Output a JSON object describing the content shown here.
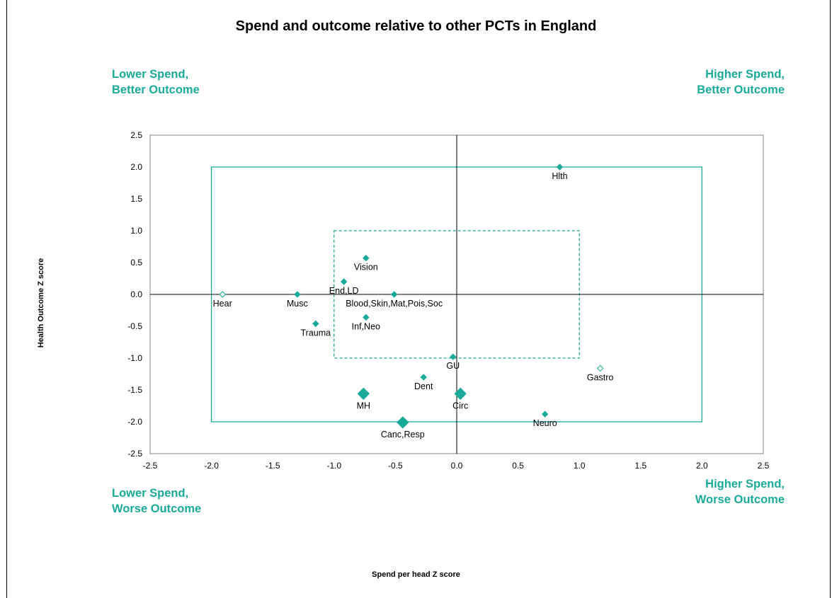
{
  "chart_data": {
    "type": "scatter",
    "title": "Spend and outcome relative to other PCTs in England",
    "xlabel": "Spend per head Z score",
    "ylabel": "Health Outcome Z score",
    "xlim": [
      -2.5,
      2.5
    ],
    "ylim": [
      -2.5,
      2.5
    ],
    "xticks": [
      "-2.5",
      "-2.0",
      "-1.5",
      "-1.0",
      "-0.5",
      "0.0",
      "0.5",
      "1.0",
      "1.5",
      "2.0",
      "2.5"
    ],
    "yticks": [
      "2.5",
      "2.0",
      "1.5",
      "1.0",
      "0.5",
      "0.0",
      "-0.5",
      "-1.0",
      "-1.5",
      "-2.0",
      "-2.5"
    ],
    "grid": false,
    "quadrant_labels": {
      "top_left": [
        "Lower Spend,",
        "Better Outcome"
      ],
      "top_right": [
        "Higher Spend,",
        "Better Outcome"
      ],
      "bottom_left": [
        "Lower Spend,",
        "Worse Outcome"
      ],
      "bottom_right": [
        "Higher Spend,",
        "Worse Outcome"
      ]
    },
    "reference_boxes": [
      {
        "style": "solid",
        "x": [
          -2.0,
          2.0
        ],
        "y": [
          -2.0,
          2.0
        ]
      },
      {
        "style": "dashed",
        "x": [
          -1.0,
          1.0
        ],
        "y": [
          -1.0,
          1.0
        ]
      }
    ],
    "points": [
      {
        "label": "Hlth",
        "x": 0.84,
        "y": 2.0,
        "size": "small",
        "filled": true
      },
      {
        "label": "Vision",
        "x": -0.74,
        "y": 0.57,
        "size": "small",
        "filled": true
      },
      {
        "label": "End,LD",
        "x": -0.92,
        "y": 0.2,
        "size": "small",
        "filled": true
      },
      {
        "label": "Hear",
        "x": -1.91,
        "y": 0.0,
        "size": "small",
        "filled": false
      },
      {
        "label": "Musc",
        "x": -1.3,
        "y": 0.0,
        "size": "small",
        "filled": true
      },
      {
        "label": "Blood,Skin,Mat,Pois,Soc",
        "x": -0.51,
        "y": 0.0,
        "size": "small",
        "filled": true
      },
      {
        "label": "Inf,Neo",
        "x": -0.74,
        "y": -0.36,
        "size": "small",
        "filled": true
      },
      {
        "label": "Trauma",
        "x": -1.15,
        "y": -0.46,
        "size": "small",
        "filled": true
      },
      {
        "label": "GU",
        "x": -0.03,
        "y": -0.98,
        "size": "small",
        "filled": true
      },
      {
        "label": "Gastro",
        "x": 1.17,
        "y": -1.16,
        "size": "small",
        "filled": false
      },
      {
        "label": "Dent",
        "x": -0.27,
        "y": -1.3,
        "size": "small",
        "filled": true
      },
      {
        "label": "MH",
        "x": -0.76,
        "y": -1.56,
        "size": "large",
        "filled": true
      },
      {
        "label": "Circ",
        "x": 0.03,
        "y": -1.56,
        "size": "large",
        "filled": true
      },
      {
        "label": "Neuro",
        "x": 0.72,
        "y": -1.88,
        "size": "small",
        "filled": true
      },
      {
        "label": "Canc,Resp",
        "x": -0.44,
        "y": -2.01,
        "size": "large",
        "filled": true
      }
    ],
    "colors": {
      "accent": "#1aaa9a",
      "axis": "#000000",
      "plot_border": "#808080"
    }
  }
}
